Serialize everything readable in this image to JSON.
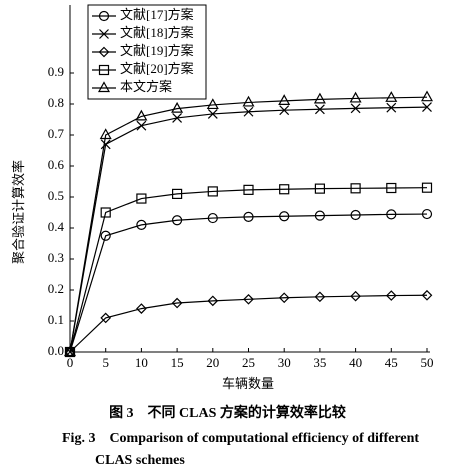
{
  "chart_data": {
    "type": "line",
    "y_label": "聚合验证计算效率",
    "x_label": "车辆数量",
    "x": [
      0,
      5,
      10,
      15,
      20,
      25,
      30,
      35,
      40,
      45,
      50
    ],
    "xlim": [
      0,
      50
    ],
    "xticks": [
      0,
      5,
      10,
      15,
      20,
      25,
      30,
      35,
      40,
      45,
      50
    ],
    "ylim": [
      0,
      1.1
    ],
    "yticks": [
      {
        "value": 0,
        "label": "0.0"
      },
      0.1,
      0.2,
      0.3,
      0.4,
      0.5,
      0.6,
      0.7,
      0.8,
      0.9
    ],
    "legend": "upper left",
    "series": [
      {
        "name": "文献[17]方案",
        "color": "#000000",
        "marker": "circle",
        "values": [
          0,
          0.375,
          0.41,
          0.425,
          0.432,
          0.436,
          0.438,
          0.44,
          0.442,
          0.444,
          0.445
        ]
      },
      {
        "name": "文献[18]方案",
        "color": "#000000",
        "marker": "x",
        "values": [
          0,
          0.67,
          0.73,
          0.755,
          0.768,
          0.775,
          0.78,
          0.783,
          0.786,
          0.788,
          0.79
        ]
      },
      {
        "name": "文献[19]方案",
        "color": "#000000",
        "marker": "diamond",
        "values": [
          0,
          0.11,
          0.14,
          0.158,
          0.165,
          0.17,
          0.175,
          0.178,
          0.18,
          0.182,
          0.183
        ]
      },
      {
        "name": "文献[20]方案",
        "color": "#000000",
        "marker": "square",
        "values": [
          0,
          0.45,
          0.495,
          0.51,
          0.518,
          0.523,
          0.525,
          0.527,
          0.528,
          0.529,
          0.53
        ]
      },
      {
        "name": "本文方案",
        "color": "#000000",
        "marker": "triangle",
        "values": [
          0,
          0.7,
          0.76,
          0.785,
          0.797,
          0.805,
          0.81,
          0.815,
          0.818,
          0.82,
          0.822
        ]
      }
    ]
  },
  "caption_cn": "图 3　不同 CLAS 方案的计算效率比较",
  "caption_en": "Fig. 3　Comparison of computational efficiency of different CLAS schemes"
}
